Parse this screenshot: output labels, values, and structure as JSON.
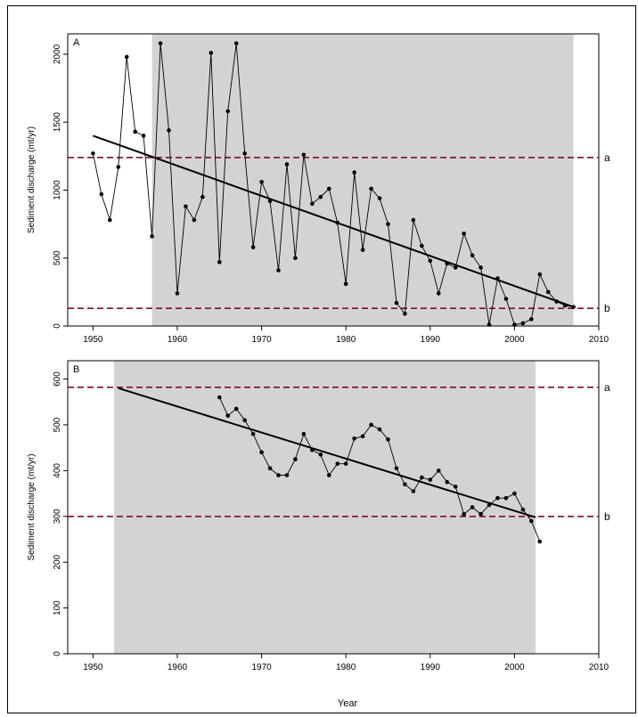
{
  "figure": {
    "xlabel": "Year"
  },
  "chart_data": [
    {
      "type": "line",
      "panel_label": "A",
      "ylabel": "Sediment discharge (mt/yr)",
      "xlim": [
        1947,
        2010
      ],
      "ylim": [
        0,
        2150
      ],
      "x_ticks": [
        1950,
        1960,
        1970,
        1980,
        1990,
        2000,
        2010
      ],
      "y_ticks": [
        0,
        500,
        1000,
        1500,
        2000
      ],
      "shaded_region": [
        1957,
        2007
      ],
      "grid": false,
      "colors": {
        "shade": "#d3d3d3",
        "series": "#000000",
        "threshold": "#7a1020"
      },
      "series": [
        {
          "x": [
            1950,
            1951,
            1952,
            1953,
            1954,
            1955,
            1956,
            1957,
            1958,
            1959,
            1960,
            1961,
            1962,
            1963,
            1964,
            1965,
            1966,
            1967,
            1968,
            1969,
            1970,
            1971,
            1972,
            1973,
            1974,
            1975,
            1976,
            1977,
            1978,
            1979,
            1980,
            1981,
            1982,
            1983,
            1984,
            1985,
            1986,
            1987,
            1988,
            1989,
            1990,
            1991,
            1992,
            1993,
            1994,
            1995,
            1996,
            1997,
            1998,
            1999,
            2000,
            2001,
            2002,
            2003,
            2004,
            2005,
            2006,
            2007
          ],
          "values": [
            1270,
            970,
            780,
            1170,
            1980,
            1430,
            1400,
            660,
            2080,
            1440,
            240,
            880,
            780,
            950,
            2010,
            470,
            1580,
            2080,
            1270,
            580,
            1060,
            920,
            410,
            1190,
            500,
            1260,
            900,
            950,
            1010,
            760,
            310,
            1130,
            560,
            1010,
            940,
            750,
            170,
            90,
            780,
            590,
            480,
            240,
            460,
            430,
            680,
            520,
            430,
            10,
            350,
            200,
            10,
            20,
            50,
            380,
            250,
            180,
            150,
            140
          ]
        }
      ],
      "trend_line": {
        "x": [
          1950,
          2007
        ],
        "y": [
          1400,
          140
        ]
      },
      "reference_lines": [
        {
          "label": "a",
          "y": 1240
        },
        {
          "label": "b",
          "y": 130
        }
      ]
    },
    {
      "type": "line",
      "panel_label": "B",
      "ylabel": "Sediment discharge (mt/yr)",
      "xlim": [
        1947,
        2010
      ],
      "ylim": [
        0,
        640
      ],
      "x_ticks": [
        1950,
        1960,
        1970,
        1980,
        1990,
        2000,
        2010
      ],
      "y_ticks": [
        0,
        100,
        200,
        300,
        400,
        500,
        600
      ],
      "shaded_region": [
        1952.5,
        2002.5
      ],
      "grid": false,
      "colors": {
        "shade": "#d3d3d3",
        "series": "#000000",
        "threshold": "#7a1020"
      },
      "series": [
        {
          "x": [
            1965,
            1966,
            1967,
            1968,
            1969,
            1970,
            1971,
            1972,
            1973,
            1974,
            1975,
            1976,
            1977,
            1978,
            1979,
            1980,
            1981,
            1982,
            1983,
            1984,
            1985,
            1986,
            1987,
            1988,
            1989,
            1990,
            1991,
            1992,
            1993,
            1994,
            1995,
            1996,
            1997,
            1998,
            1999,
            2000,
            2001,
            2002,
            2003
          ],
          "values": [
            560,
            520,
            535,
            510,
            480,
            440,
            405,
            390,
            390,
            425,
            480,
            445,
            435,
            390,
            415,
            415,
            470,
            475,
            500,
            490,
            468,
            405,
            370,
            355,
            385,
            380,
            400,
            375,
            365,
            305,
            320,
            305,
            325,
            340,
            340,
            350,
            315,
            290,
            245
          ]
        }
      ],
      "trend_line": {
        "x": [
          1953,
          2002.5
        ],
        "y": [
          580,
          298
        ]
      },
      "reference_lines": [
        {
          "label": "a",
          "y": 582
        },
        {
          "label": "b",
          "y": 300
        }
      ]
    }
  ]
}
